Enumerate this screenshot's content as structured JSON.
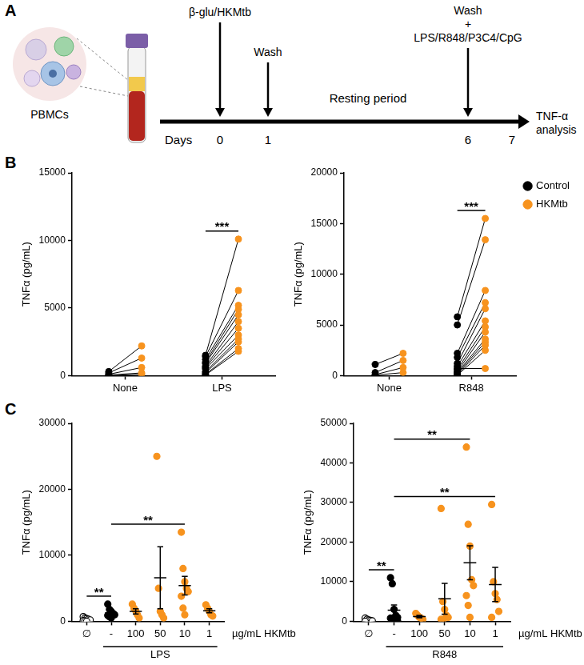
{
  "panel_labels": [
    "A",
    "B",
    "C"
  ],
  "diagram": {
    "cells_label": "PBMCs",
    "axis_label": "Days",
    "days": [
      "0",
      "1",
      "6",
      "7"
    ],
    "events": [
      {
        "day": "0",
        "text": [
          "β-glu/HKMtb"
        ]
      },
      {
        "day": "1",
        "text": [
          "Wash"
        ]
      },
      {
        "day": "6",
        "text": [
          "Wash",
          "+",
          "LPS/R848/P3C4/CpG"
        ]
      }
    ],
    "period": "Resting period",
    "end": [
      "TNF-α",
      "analysis"
    ]
  },
  "chart_data": [
    {
      "type": "paired_scatter",
      "categories": [
        "None",
        "LPS"
      ],
      "ylabel": "TNFα (pg/mL)",
      "ylim": [
        0,
        15000
      ],
      "yticks": [
        0,
        5000,
        10000,
        15000
      ],
      "grid": false,
      "series": [
        {
          "name": "Control",
          "color": "#000000",
          "values": [
            [
              300,
              200,
              100,
              50,
              0
            ],
            [
              1500,
              1400,
              1200,
              1000,
              900,
              700,
              600,
              500,
              300,
              200,
              100,
              50
            ]
          ]
        },
        {
          "name": "HKMtb",
          "color": "#f7931e",
          "values": [
            [
              2200,
              1300,
              600,
              200,
              100
            ],
            [
              10100,
              6300,
              5200,
              4900,
              4500,
              4000,
              3500,
              3000,
              2700,
              2500,
              2000,
              1800
            ]
          ]
        }
      ],
      "annotations": [
        {
          "text": "***",
          "category": "LPS"
        }
      ]
    },
    {
      "type": "paired_scatter",
      "categories": [
        "None",
        "R848"
      ],
      "ylabel": "TNFα (pg/mL)",
      "ylim": [
        0,
        20000
      ],
      "yticks": [
        0,
        5000,
        10000,
        15000,
        20000
      ],
      "grid": false,
      "legend": "top-right",
      "series": [
        {
          "name": "Control",
          "color": "#000000",
          "values": [
            [
              1100,
              300,
              100,
              50
            ],
            [
              5800,
              5000,
              2200,
              1800,
              1200,
              900,
              600,
              400,
              300,
              200,
              100,
              50,
              700
            ]
          ]
        },
        {
          "name": "HKMtb",
          "color": "#f7931e",
          "values": [
            [
              2200,
              1500,
              800,
              300
            ],
            [
              15500,
              13400,
              8400,
              7200,
              6600,
              5400,
              4800,
              4300,
              3600,
              3300,
              3000,
              2500,
              700
            ]
          ]
        }
      ],
      "annotations": [
        {
          "text": "***",
          "category": "R848"
        }
      ]
    },
    {
      "type": "dot_plot",
      "categories": [
        "∅",
        "-",
        "100",
        "50",
        "10",
        "1"
      ],
      "xlabel": "µg/mL HKMtb",
      "x_group": {
        "label": "LPS",
        "from": "-",
        "to": "1"
      },
      "ylabel": "TNFα (pg/mL)",
      "ylim": [
        0,
        30000
      ],
      "yticks": [
        0,
        10000,
        20000,
        30000
      ],
      "grid": false,
      "colors": [
        "#ffffff",
        "#000000",
        "#f7931e",
        "#f7931e",
        "#f7931e",
        "#f7931e"
      ],
      "values": [
        [
          700,
          500,
          400,
          300,
          200,
          100,
          50,
          0
        ],
        [
          2600,
          1800,
          1500,
          1200,
          1000,
          900,
          700,
          500
        ],
        [
          2600,
          2000,
          1600,
          1000,
          500
        ],
        [
          25000,
          5000,
          1500,
          1000,
          500
        ],
        [
          13500,
          8000,
          6000,
          5000,
          4500,
          3800,
          2000,
          1000
        ],
        [
          2500,
          2000,
          1500,
          1000,
          800
        ]
      ],
      "mean": [
        null,
        1300,
        1500,
        6600,
        5400,
        1600
      ],
      "sem": [
        null,
        250,
        400,
        4700,
        1400,
        300
      ],
      "annotations": [
        {
          "text": "**",
          "from": "∅",
          "to": "-"
        },
        {
          "text": "**",
          "from": "-",
          "to": "10"
        }
      ]
    },
    {
      "type": "dot_plot",
      "categories": [
        "∅",
        "-",
        "100",
        "50",
        "10",
        "1"
      ],
      "xlabel": "µg/mL HKMtb",
      "x_group": {
        "label": "R848",
        "from": "-",
        "to": "1"
      },
      "ylabel": "TNFα (pg/mL)",
      "ylim": [
        0,
        50000
      ],
      "yticks": [
        0,
        10000,
        20000,
        30000,
        40000,
        50000
      ],
      "grid": false,
      "colors": [
        "#ffffff",
        "#000000",
        "#f7931e",
        "#f7931e",
        "#f7931e",
        "#f7931e"
      ],
      "values": [
        [
          800,
          500,
          300,
          200,
          100,
          0
        ],
        [
          11000,
          9500,
          3000,
          1500,
          1000,
          800,
          500,
          300,
          200,
          100
        ],
        [
          2000,
          1500,
          1000,
          800,
          500
        ],
        [
          28500,
          5000,
          3000,
          1500,
          1000,
          500,
          300
        ],
        [
          44000,
          24500,
          19000,
          10500,
          9000,
          6500,
          4000,
          1000
        ],
        [
          29500,
          10000,
          7000,
          5500,
          2500,
          1000
        ]
      ],
      "mean": [
        null,
        2800,
        1200,
        5700,
        14800,
        9300
      ],
      "sem": [
        null,
        1300,
        300,
        3900,
        4300,
        4300
      ],
      "annotations": [
        {
          "text": "**",
          "from": "∅",
          "to": "-"
        },
        {
          "text": "**",
          "from": "-",
          "to": "10"
        },
        {
          "text": "**",
          "from": "-",
          "to": "1"
        }
      ]
    }
  ]
}
